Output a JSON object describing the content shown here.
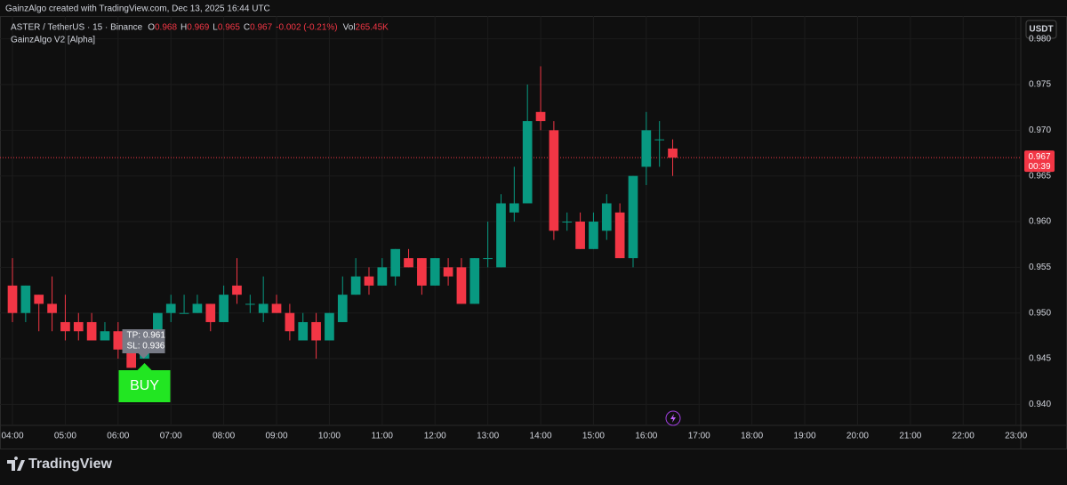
{
  "header": {
    "credit": "GainzAlgo created with TradingView.com, Dec 13, 2025 16:44 UTC",
    "symbol": "ASTER / TetherUS · 15 · Binance",
    "o_label": "O",
    "o": 0.968,
    "h_label": "H",
    "h": 0.969,
    "l_label": "L",
    "l": 0.965,
    "c_label": "C",
    "c": 0.967,
    "change": "-0.002 (-0.21%)",
    "vol_label": "Vol",
    "vol": "265.45K",
    "indicator": "GainzAlgo V2 [Alpha]",
    "currency": "USDT"
  },
  "chart_data": {
    "type": "candlestick",
    "up_color": "#089981",
    "down_color": "#f23645",
    "x": [
      4,
      4.25,
      4.5,
      4.75,
      5,
      5.25,
      5.5,
      5.75,
      6,
      6.25,
      6.5,
      6.75,
      7,
      7.25,
      7.5,
      7.75,
      8,
      8.25,
      8.5,
      8.75,
      9,
      9.25,
      9.5,
      9.75,
      10,
      10.25,
      10.5,
      10.75,
      11,
      11.25,
      11.5,
      11.75,
      12,
      12.25,
      12.5,
      12.75,
      13,
      13.25,
      13.5,
      13.75,
      14,
      14.25,
      14.5,
      14.75,
      15,
      15.25,
      15.5,
      15.75,
      16,
      16.25,
      16.5
    ],
    "open": [
      0.953,
      0.95,
      0.952,
      0.951,
      0.949,
      0.949,
      0.949,
      0.947,
      0.948,
      0.946,
      0.945,
      0.947,
      0.95,
      0.95,
      0.95,
      0.951,
      0.949,
      0.953,
      0.951,
      0.95,
      0.951,
      0.95,
      0.947,
      0.949,
      0.947,
      0.949,
      0.952,
      0.954,
      0.953,
      0.954,
      0.956,
      0.956,
      0.953,
      0.955,
      0.955,
      0.951,
      0.956,
      0.955,
      0.961,
      0.962,
      0.972,
      0.97,
      0.96,
      0.96,
      0.957,
      0.959,
      0.961,
      0.956,
      0.966,
      0.969,
      0.968
    ],
    "high": [
      0.956,
      0.953,
      0.952,
      0.954,
      0.952,
      0.95,
      0.95,
      0.949,
      0.949,
      0.947,
      0.948,
      0.95,
      0.952,
      0.952,
      0.952,
      0.951,
      0.953,
      0.956,
      0.952,
      0.954,
      0.952,
      0.951,
      0.95,
      0.95,
      0.95,
      0.954,
      0.956,
      0.955,
      0.956,
      0.957,
      0.957,
      0.956,
      0.956,
      0.956,
      0.956,
      0.956,
      0.96,
      0.963,
      0.966,
      0.975,
      0.977,
      0.971,
      0.961,
      0.961,
      0.961,
      0.963,
      0.962,
      0.965,
      0.972,
      0.971,
      0.969
    ],
    "low": [
      0.949,
      0.949,
      0.948,
      0.948,
      0.947,
      0.947,
      0.947,
      0.947,
      0.945,
      0.944,
      0.945,
      0.947,
      0.949,
      0.95,
      0.95,
      0.948,
      0.949,
      0.951,
      0.95,
      0.949,
      0.95,
      0.947,
      0.947,
      0.945,
      0.947,
      0.949,
      0.952,
      0.952,
      0.953,
      0.953,
      0.955,
      0.952,
      0.953,
      0.953,
      0.951,
      0.951,
      0.955,
      0.955,
      0.96,
      0.962,
      0.97,
      0.958,
      0.959,
      0.957,
      0.957,
      0.958,
      0.956,
      0.955,
      0.964,
      0.966,
      0.965
    ],
    "close": [
      0.95,
      0.953,
      0.951,
      0.95,
      0.948,
      0.948,
      0.947,
      0.948,
      0.946,
      0.944,
      0.946,
      0.95,
      0.951,
      0.95,
      0.951,
      0.949,
      0.952,
      0.952,
      0.951,
      0.951,
      0.95,
      0.948,
      0.949,
      0.947,
      0.95,
      0.952,
      0.954,
      0.953,
      0.955,
      0.957,
      0.955,
      0.953,
      0.956,
      0.954,
      0.951,
      0.956,
      0.956,
      0.962,
      0.962,
      0.971,
      0.971,
      0.959,
      0.96,
      0.957,
      0.96,
      0.962,
      0.956,
      0.965,
      0.97,
      0.969,
      0.967
    ],
    "xlim": [
      3.764,
      23.09
    ],
    "xticks": [
      {
        "value": 4,
        "label": "04:00"
      },
      {
        "value": 5,
        "label": "05:00"
      },
      {
        "value": 6,
        "label": "06:00"
      },
      {
        "value": 7,
        "label": "07:00"
      },
      {
        "value": 8,
        "label": "08:00"
      },
      {
        "value": 9,
        "label": "09:00"
      },
      {
        "value": 10,
        "label": "10:00"
      },
      {
        "value": 11,
        "label": "11:00"
      },
      {
        "value": 12,
        "label": "12:00"
      },
      {
        "value": 13,
        "label": "13:00"
      },
      {
        "value": 14,
        "label": "14:00"
      },
      {
        "value": 15,
        "label": "15:00"
      },
      {
        "value": 16,
        "label": "16:00"
      },
      {
        "value": 17,
        "label": "17:00"
      },
      {
        "value": 18,
        "label": "18:00"
      },
      {
        "value": 19,
        "label": "19:00"
      },
      {
        "value": 20,
        "label": "20:00"
      },
      {
        "value": 21,
        "label": "21:00"
      },
      {
        "value": 22,
        "label": "22:00"
      },
      {
        "value": 23,
        "label": "23:00"
      }
    ],
    "ylim": [
      0.9377,
      0.9825
    ],
    "yticks": [
      {
        "value": 0.94,
        "label": "0.940"
      },
      0.945,
      {
        "value": 0.95,
        "label": "0.950"
      },
      0.955,
      {
        "value": 0.96,
        "label": "0.960"
      },
      0.965,
      {
        "value": 0.97,
        "label": "0.970"
      },
      0.975,
      {
        "value": 0.98,
        "label": "0.980"
      }
    ],
    "grid": true,
    "last_price": 0.967,
    "countdown": "00:39",
    "signal": {
      "x": 6.5,
      "tp": "TP: 0.961",
      "sl": "SL: 0.936",
      "label": "BUY"
    }
  },
  "footer": {
    "brand": "TradingView"
  }
}
